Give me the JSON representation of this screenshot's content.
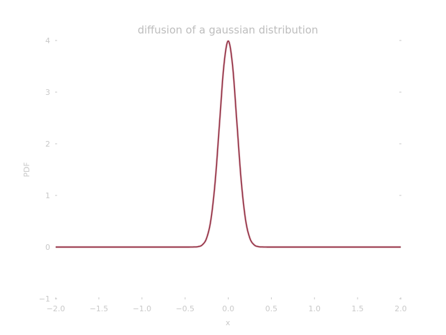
{
  "chart_data": {
    "type": "line",
    "title": "diffusion of a gaussian distribution",
    "xlabel": "x",
    "ylabel": "PDF",
    "xlim": [
      -2.0,
      2.0
    ],
    "ylim": [
      -1,
      4
    ],
    "grid": false,
    "x_ticks": [
      -2.0,
      -1.5,
      -1.0,
      -0.5,
      0.0,
      0.5,
      1.0,
      1.5,
      2.0
    ],
    "x_tick_labels": [
      "−2.0",
      "−1.5",
      "−1.0",
      "−0.5",
      "0.0",
      "0.5",
      "1.0",
      "1.5",
      "2.0"
    ],
    "y_ticks": [
      -1,
      0,
      1,
      2,
      3,
      4
    ],
    "y_tick_labels": [
      "−1",
      "0",
      "1",
      "2",
      "3",
      "4"
    ],
    "series": [
      {
        "color": "#8b2035",
        "x": [
          -2.0,
          -1.5,
          -1.0,
          -0.5,
          -0.4,
          -0.35,
          -0.3,
          -0.25,
          -0.2,
          -0.15,
          -0.1,
          -0.05,
          0.0,
          0.05,
          0.1,
          0.15,
          0.2,
          0.25,
          0.3,
          0.35,
          0.4,
          0.5,
          1.0,
          1.5,
          2.0
        ],
        "y": [
          0.0,
          0.0,
          0.0,
          0.0,
          0.002,
          0.008,
          0.044,
          0.176,
          0.54,
          1.295,
          2.42,
          3.521,
          3.99,
          3.521,
          2.42,
          1.295,
          0.54,
          0.176,
          0.044,
          0.008,
          0.002,
          0.0,
          0.0,
          0.0,
          0.0
        ]
      }
    ]
  }
}
